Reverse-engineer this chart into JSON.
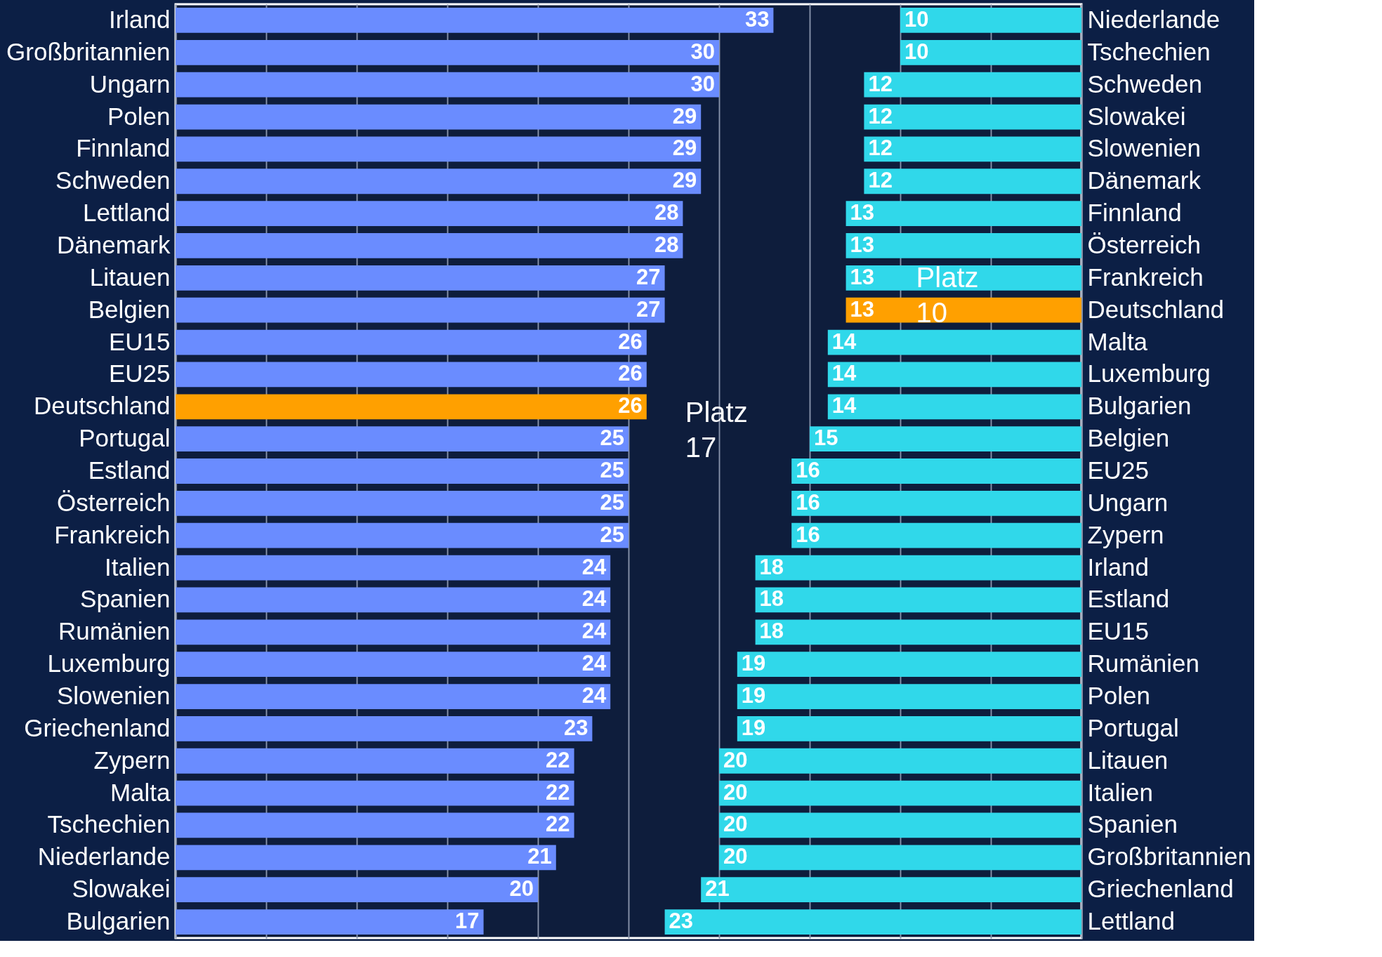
{
  "chart_data": [
    {
      "type": "bar",
      "orientation": "horizontal",
      "categories": [
        "Irland",
        "Großbritannien",
        "Ungarn",
        "Polen",
        "Finnland",
        "Schweden",
        "Lettland",
        "Dänemark",
        "Litauen",
        "Belgien",
        "EU15",
        "EU25",
        "Deutschland",
        "Portugal",
        "Estland",
        "Österreich",
        "Frankreich",
        "Italien",
        "Spanien",
        "Rumänien",
        "Luxemburg",
        "Slowenien",
        "Griechenland",
        "Zypern",
        "Malta",
        "Tschechien",
        "Niederlande",
        "Slowakei",
        "Bulgarien"
      ],
      "values": [
        33,
        30,
        30,
        29,
        29,
        29,
        28,
        28,
        27,
        27,
        26,
        26,
        26,
        25,
        25,
        25,
        25,
        24,
        24,
        24,
        24,
        24,
        23,
        22,
        22,
        22,
        21,
        20,
        17
      ],
      "colors": [
        "#6a8cff",
        "#6a8cff",
        "#6a8cff",
        "#6a8cff",
        "#6a8cff",
        "#6a8cff",
        "#6a8cff",
        "#6a8cff",
        "#6a8cff",
        "#6a8cff",
        "#6a8cff",
        "#6a8cff",
        "#ffa000",
        "#6a8cff",
        "#6a8cff",
        "#6a8cff",
        "#6a8cff",
        "#6a8cff",
        "#6a8cff",
        "#6a8cff",
        "#6a8cff",
        "#6a8cff",
        "#6a8cff",
        "#6a8cff",
        "#6a8cff",
        "#6a8cff",
        "#6a8cff",
        "#6a8cff",
        "#6a8cff"
      ],
      "xlim": [
        0,
        50
      ],
      "grid": "x",
      "data_labels": true,
      "tick_labels": "y",
      "annotations": [
        {
          "text": "Platz 17",
          "x": 26,
          "y": "Deutschland"
        }
      ]
    },
    {
      "type": "bar",
      "orientation": "horizontal",
      "categories": [
        "Niederlande",
        "Tschechien",
        "Schweden",
        "Slowakei",
        "Slowenien",
        "Dänemark",
        "Finnland",
        "Österreich",
        "Frankreich",
        "Deutschland",
        "Malta",
        "Luxemburg",
        "Bulgarien",
        "Belgien",
        "EU25",
        "Ungarn",
        "Zypern",
        "Irland",
        "Estland",
        "EU15",
        "Rumänien",
        "Polen",
        "Portugal",
        "Litauen",
        "Italien",
        "Spanien",
        "Großbritannien",
        "Griechenland",
        "Lettland"
      ],
      "values": [
        10,
        10,
        12,
        12,
        12,
        12,
        13,
        13,
        13,
        13,
        14,
        14,
        14,
        15,
        16,
        16,
        16,
        18,
        18,
        18,
        19,
        19,
        19,
        20,
        20,
        20,
        20,
        21,
        23
      ],
      "colors": [
        "#30d8ea",
        "#30d8ea",
        "#30d8ea",
        "#30d8ea",
        "#30d8ea",
        "#30d8ea",
        "#30d8ea",
        "#30d8ea",
        "#30d8ea",
        "#ffa000",
        "#30d8ea",
        "#30d8ea",
        "#30d8ea",
        "#30d8ea",
        "#30d8ea",
        "#30d8ea",
        "#30d8ea",
        "#30d8ea",
        "#30d8ea",
        "#30d8ea",
        "#30d8ea",
        "#30d8ea",
        "#30d8ea",
        "#30d8ea",
        "#30d8ea",
        "#30d8ea",
        "#30d8ea",
        "#30d8ea",
        "#30d8ea"
      ],
      "xlim": [
        50,
        0
      ],
      "grid": "x",
      "data_labels": true,
      "tick_labels": "y",
      "annotations": [
        {
          "text": "Platz 10",
          "x": 13,
          "y": "Deutschland"
        }
      ]
    }
  ]
}
